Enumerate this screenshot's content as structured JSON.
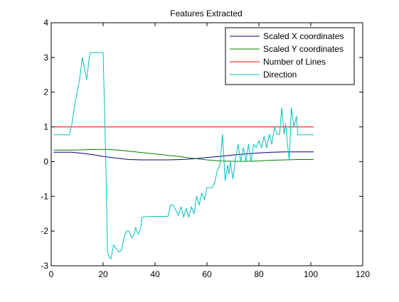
{
  "chart_data": {
    "type": "line",
    "title": "Features Extracted",
    "xlabel": "",
    "ylabel": "",
    "xlim": [
      0,
      120
    ],
    "ylim": [
      -3,
      4
    ],
    "xticks": [
      0,
      20,
      40,
      60,
      80,
      100,
      120
    ],
    "yticks": [
      -3,
      -2,
      -1,
      0,
      1,
      2,
      3,
      4
    ],
    "grid": false,
    "legend_position": "top-right",
    "series": [
      {
        "name": "Scaled X coordinates",
        "color": "#000080",
        "points": [
          [
            1,
            0.27
          ],
          [
            8,
            0.27
          ],
          [
            12,
            0.24
          ],
          [
            16,
            0.2
          ],
          [
            20,
            0.15
          ],
          [
            25,
            0.1
          ],
          [
            30,
            0.06
          ],
          [
            35,
            0.05
          ],
          [
            40,
            0.05
          ],
          [
            45,
            0.05
          ],
          [
            50,
            0.06
          ],
          [
            55,
            0.08
          ],
          [
            60,
            0.12
          ],
          [
            65,
            0.15
          ],
          [
            70,
            0.19
          ],
          [
            75,
            0.22
          ],
          [
            80,
            0.25
          ],
          [
            85,
            0.27
          ],
          [
            90,
            0.28
          ],
          [
            95,
            0.28
          ],
          [
            101,
            0.28
          ]
        ]
      },
      {
        "name": "Scaled Y coordinates",
        "color": "#008000",
        "points": [
          [
            1,
            0.33
          ],
          [
            8,
            0.33
          ],
          [
            12,
            0.34
          ],
          [
            16,
            0.35
          ],
          [
            22,
            0.35
          ],
          [
            26,
            0.33
          ],
          [
            30,
            0.3
          ],
          [
            35,
            0.26
          ],
          [
            40,
            0.22
          ],
          [
            45,
            0.18
          ],
          [
            50,
            0.14
          ],
          [
            55,
            0.09
          ],
          [
            60,
            0.05
          ],
          [
            65,
            0.02
          ],
          [
            70,
            0.01
          ],
          [
            75,
            0.01
          ],
          [
            80,
            0.02
          ],
          [
            85,
            0.04
          ],
          [
            90,
            0.05
          ],
          [
            95,
            0.06
          ],
          [
            101,
            0.06
          ]
        ]
      },
      {
        "name": "Number of Lines",
        "color": "#ff0000",
        "points": [
          [
            1,
            1
          ],
          [
            101,
            1
          ]
        ]
      },
      {
        "name": "Direction",
        "color": "#00bfbf",
        "points": [
          [
            1,
            0.77
          ],
          [
            7,
            0.77
          ],
          [
            8,
            1.1
          ],
          [
            9,
            1.6
          ],
          [
            10,
            2.0
          ],
          [
            11,
            2.4
          ],
          [
            12,
            3.0
          ],
          [
            13,
            2.6
          ],
          [
            13.7,
            2.36
          ],
          [
            14.5,
            2.9
          ],
          [
            15,
            3.14
          ],
          [
            17,
            3.14
          ],
          [
            19,
            3.14
          ],
          [
            20,
            3.14
          ],
          [
            21,
            0.1
          ],
          [
            21.7,
            -2.6
          ],
          [
            22.3,
            -2.75
          ],
          [
            23,
            -2.8
          ],
          [
            24,
            -2.4
          ],
          [
            25,
            -2.5
          ],
          [
            26,
            -2.6
          ],
          [
            27,
            -2.56
          ],
          [
            28,
            -2.2
          ],
          [
            29,
            -2.0
          ],
          [
            30,
            -2.0
          ],
          [
            31,
            -2.2
          ],
          [
            32,
            -2.1
          ],
          [
            32.5,
            -1.9
          ],
          [
            33.5,
            -2.1
          ],
          [
            34.5,
            -1.9
          ],
          [
            35,
            -1.6
          ],
          [
            37,
            -1.58
          ],
          [
            39,
            -1.58
          ],
          [
            41,
            -1.58
          ],
          [
            43,
            -1.58
          ],
          [
            45,
            -1.58
          ],
          [
            46,
            -1.25
          ],
          [
            47,
            -1.25
          ],
          [
            48,
            -1.4
          ],
          [
            49,
            -1.55
          ],
          [
            50,
            -1.3
          ],
          [
            51,
            -1.6
          ],
          [
            52,
            -1.35
          ],
          [
            53,
            -1.6
          ],
          [
            54,
            -1.3
          ],
          [
            55,
            -1.5
          ],
          [
            56,
            -1.0
          ],
          [
            57,
            -1.25
          ],
          [
            58,
            -0.9
          ],
          [
            59,
            -1.1
          ],
          [
            60,
            -0.75
          ],
          [
            62,
            -0.75
          ],
          [
            63,
            -0.6
          ],
          [
            64,
            -0.25
          ],
          [
            65,
            -0.1
          ],
          [
            66,
            0.79
          ],
          [
            67,
            -0.55
          ],
          [
            68,
            -0.1
          ],
          [
            68.5,
            -0.35
          ],
          [
            69,
            0.0
          ],
          [
            70,
            -0.5
          ],
          [
            71,
            0.1
          ],
          [
            72,
            0.5
          ],
          [
            73,
            0.0
          ],
          [
            74,
            0.4
          ],
          [
            75,
            0.0
          ],
          [
            76,
            0.5
          ],
          [
            77,
            0.0
          ],
          [
            78,
            0.5
          ],
          [
            79,
            0.4
          ],
          [
            80,
            0.6
          ],
          [
            81,
            0.4
          ],
          [
            82,
            0.72
          ],
          [
            83,
            0.4
          ],
          [
            84,
            0.79
          ],
          [
            85,
            0.5
          ],
          [
            86,
            1.0
          ],
          [
            87,
            0.79
          ],
          [
            88,
            0.79
          ],
          [
            88.8,
            1.55
          ],
          [
            89.7,
            0.79
          ],
          [
            90.3,
            1.1
          ],
          [
            91,
            0.5
          ],
          [
            91.7,
            0.05
          ],
          [
            92.5,
            1.55
          ],
          [
            93.5,
            1.0
          ],
          [
            94.5,
            1.3
          ],
          [
            95,
            0.77
          ],
          [
            97,
            0.77
          ],
          [
            99,
            0.77
          ],
          [
            101,
            0.77
          ]
        ]
      }
    ]
  }
}
